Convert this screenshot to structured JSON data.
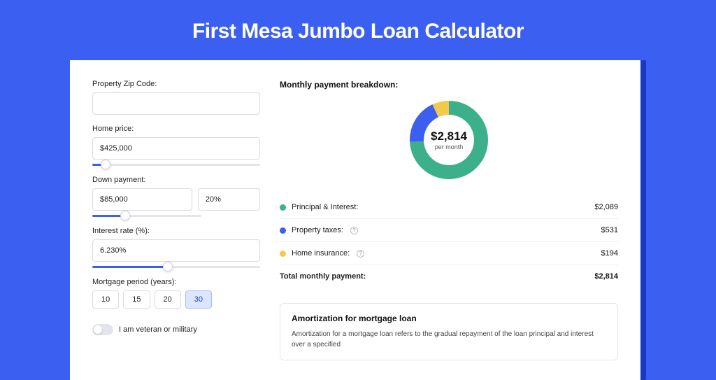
{
  "title": "First Mesa Jumbo Loan Calculator",
  "colors": {
    "page_bg": "#3b5ff0",
    "card_bg": "#ffffff",
    "shadow_bg": "#1838c8",
    "border": "#d9dce2",
    "text": "#222222"
  },
  "form": {
    "zip": {
      "label": "Property Zip Code:",
      "value": ""
    },
    "home_price": {
      "label": "Home price:",
      "value": "$425,000",
      "slider_pct": 8
    },
    "down_payment": {
      "label": "Down payment:",
      "amount": "$85,000",
      "percent": "20%",
      "slider_pct": 30
    },
    "interest_rate": {
      "label": "Interest rate (%):",
      "value": "6.230%",
      "slider_pct": 45
    },
    "mortgage_period": {
      "label": "Mortgage period (years):",
      "options": [
        "10",
        "15",
        "20",
        "30"
      ],
      "selected_index": 3
    },
    "veteran": {
      "label": "I am veteran or military",
      "checked": false
    }
  },
  "breakdown": {
    "title": "Monthly payment breakdown:",
    "donut": {
      "center_amount": "$2,814",
      "center_sub": "per month",
      "slices": [
        {
          "label": "Principal & Interest",
          "value": 2089,
          "color": "#3cb08a",
          "pct": 74.2
        },
        {
          "label": "Property taxes",
          "value": 531,
          "color": "#3b5ff0",
          "pct": 18.9
        },
        {
          "label": "Home insurance",
          "value": 194,
          "color": "#f2c94c",
          "pct": 6.9
        }
      ]
    },
    "items": [
      {
        "label": "Principal & Interest:",
        "value": "$2,089",
        "color": "#3cb08a",
        "info": false
      },
      {
        "label": "Property taxes:",
        "value": "$531",
        "color": "#3b5ff0",
        "info": true
      },
      {
        "label": "Home insurance:",
        "value": "$194",
        "color": "#f2c94c",
        "info": true
      }
    ],
    "total": {
      "label": "Total monthly payment:",
      "value": "$2,814"
    }
  },
  "amortization": {
    "title": "Amortization for mortgage loan",
    "text": "Amortization for a mortgage loan refers to the gradual repayment of the loan principal and interest over a specified"
  }
}
